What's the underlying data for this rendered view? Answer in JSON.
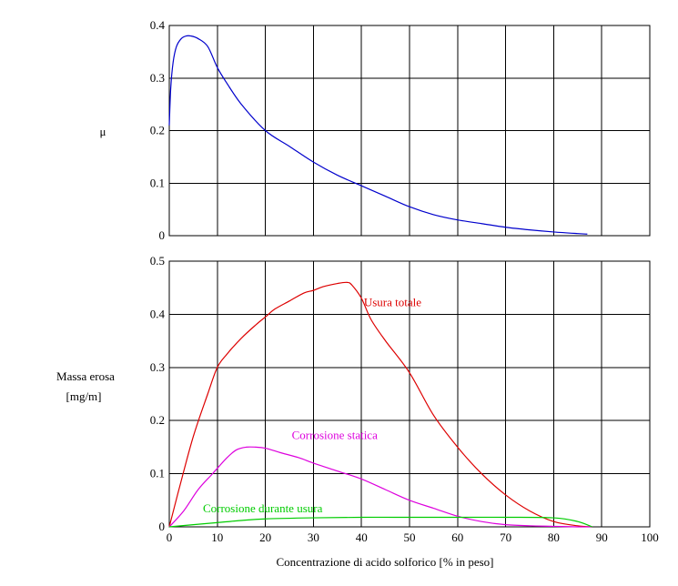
{
  "chart_data": [
    {
      "type": "line",
      "ylabel": "μ",
      "xlim": [
        0,
        100
      ],
      "ylim": [
        0,
        0.4
      ],
      "yticks": [
        "0",
        "0.1",
        "0.2",
        "0.3",
        "0.4"
      ],
      "grid": true,
      "series": [
        {
          "color": "#0000cc",
          "x": [
            0,
            0.3,
            0.8,
            1.5,
            2.5,
            3.5,
            4.5,
            6,
            8,
            10,
            12,
            15,
            20,
            25,
            30,
            35,
            40,
            45,
            50,
            55,
            60,
            65,
            70,
            75,
            80,
            85,
            87
          ],
          "y": [
            0.21,
            0.28,
            0.33,
            0.36,
            0.375,
            0.38,
            0.38,
            0.375,
            0.36,
            0.32,
            0.29,
            0.25,
            0.2,
            0.17,
            0.14,
            0.115,
            0.095,
            0.075,
            0.055,
            0.04,
            0.03,
            0.023,
            0.016,
            0.011,
            0.007,
            0.004,
            0.003
          ]
        }
      ]
    },
    {
      "type": "line",
      "ylabel": "Massa erosa",
      "ylabel_unit": "[mg/m]",
      "xlabel": "Concentrazione di acido solforico [% in peso]",
      "xlim": [
        0,
        100
      ],
      "ylim": [
        0,
        0.5
      ],
      "xticks": [
        "0",
        "10",
        "20",
        "30",
        "40",
        "50",
        "60",
        "70",
        "80",
        "90",
        "100"
      ],
      "yticks": [
        "0",
        "0.1",
        "0.2",
        "0.3",
        "0.4",
        "0.5"
      ],
      "grid": true,
      "series": [
        {
          "name": "Usura totale",
          "color": "#dd0000",
          "x": [
            0,
            2,
            5,
            8,
            10,
            12,
            15,
            18,
            20,
            22,
            25,
            28,
            30,
            32,
            35,
            37,
            38,
            40,
            42,
            45,
            50,
            55,
            60,
            65,
            70,
            75,
            80,
            85,
            88
          ],
          "y": [
            0,
            0.07,
            0.17,
            0.25,
            0.3,
            0.325,
            0.355,
            0.38,
            0.395,
            0.41,
            0.425,
            0.44,
            0.445,
            0.452,
            0.458,
            0.46,
            0.455,
            0.43,
            0.39,
            0.35,
            0.29,
            0.21,
            0.15,
            0.1,
            0.06,
            0.03,
            0.01,
            0.002,
            0
          ]
        },
        {
          "name": "Corrosione statica",
          "color": "#dd00dd",
          "x": [
            0,
            3,
            6,
            9,
            12,
            14,
            16,
            18,
            20,
            23,
            27,
            30,
            35,
            40,
            45,
            50,
            55,
            60,
            65,
            70,
            75,
            80,
            85,
            88
          ],
          "y": [
            0,
            0.03,
            0.07,
            0.1,
            0.13,
            0.145,
            0.15,
            0.15,
            0.148,
            0.14,
            0.13,
            0.12,
            0.105,
            0.09,
            0.07,
            0.05,
            0.035,
            0.02,
            0.01,
            0.004,
            0.002,
            0.001,
            0,
            0
          ]
        },
        {
          "name": "Corrosione durante usura",
          "color": "#00cc00",
          "x": [
            0,
            5,
            10,
            15,
            20,
            30,
            40,
            50,
            60,
            70,
            80,
            85,
            88
          ],
          "y": [
            0,
            0.004,
            0.008,
            0.012,
            0.015,
            0.017,
            0.018,
            0.018,
            0.018,
            0.018,
            0.017,
            0.01,
            0
          ]
        }
      ]
    }
  ]
}
